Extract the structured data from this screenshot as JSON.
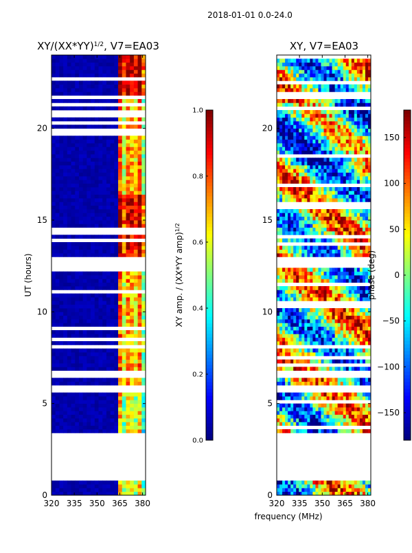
{
  "figure": {
    "suptitle": "2018-01-01 0.0-24.0",
    "shared_xlabel": "frequency (MHz)"
  },
  "chart_data": [
    {
      "type": "heatmap",
      "title": "XY/(XX*YY)",
      "title_exponent": "1/2",
      "title_suffix": ", V7=EA03",
      "xlabel": "",
      "ylabel": "UT (hours)",
      "xlim": [
        320,
        382
      ],
      "ylim": [
        0,
        24
      ],
      "xticks": [
        "320",
        "335",
        "350",
        "365",
        "380"
      ],
      "xtick_values": [
        320,
        335,
        350,
        365,
        380
      ],
      "yticks": [
        "0",
        "5",
        "10",
        "15",
        "20"
      ],
      "ytick_values": [
        0,
        5,
        10,
        15,
        20
      ],
      "colorbar": {
        "label": "XY amp. / (XX*YY amp)",
        "label_exponent": "1/2",
        "range": [
          0.0,
          1.0
        ],
        "ticks": [
          "0.0",
          "0.2",
          "0.4",
          "0.6",
          "0.8",
          "1.0"
        ],
        "tick_values": [
          0.0,
          0.2,
          0.4,
          0.6,
          0.8,
          1.0
        ],
        "colormap": "jet"
      },
      "data_gaps_hours": [
        [
          0.85,
          3.1
        ],
        [
          5.65,
          6.0
        ],
        [
          6.45,
          6.7
        ],
        [
          12.45,
          12.95
        ],
        [
          21.6,
          21.75
        ]
      ]
    },
    {
      "type": "heatmap",
      "title": "XY, V7=EA03",
      "xlabel": "frequency (MHz)",
      "ylabel": "",
      "xlim": [
        320,
        382
      ],
      "ylim": [
        0,
        24
      ],
      "xticks": [
        "320",
        "335",
        "350",
        "365",
        "380"
      ],
      "xtick_values": [
        320,
        335,
        350,
        365,
        380
      ],
      "yticks": [
        "0",
        "5",
        "10",
        "15",
        "20"
      ],
      "ytick_values": [
        0,
        5,
        10,
        15,
        20
      ],
      "colorbar": {
        "label": "phase (deg)",
        "range": [
          -180,
          180
        ],
        "ticks": [
          "−150",
          "−100",
          "−50",
          "0",
          "50",
          "100",
          "150"
        ],
        "tick_values": [
          -150,
          -100,
          -50,
          0,
          50,
          100,
          150
        ],
        "colormap": "jet"
      },
      "data_gaps_hours": [
        [
          0.85,
          3.1
        ],
        [
          5.65,
          6.0
        ],
        [
          6.45,
          6.7
        ],
        [
          12.45,
          12.95
        ],
        [
          21.6,
          21.75
        ]
      ]
    }
  ]
}
